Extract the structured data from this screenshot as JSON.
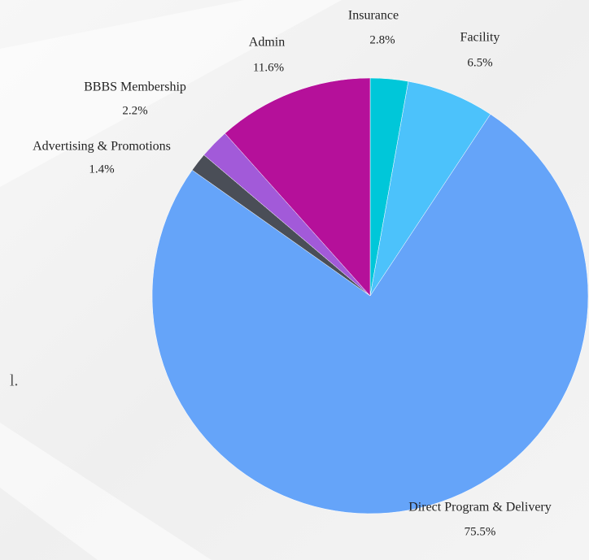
{
  "chart_data": {
    "type": "pie",
    "categories": [
      "Insurance",
      "Facility",
      "Direct Program & Delivery",
      "Advertising & Promotions",
      "BBBS Membership",
      "Admin"
    ],
    "values": [
      2.8,
      6.5,
      75.5,
      1.4,
      2.2,
      11.6
    ],
    "value_labels": [
      "2.8%",
      "6.5%",
      "75.5%",
      "1.4%",
      "2.2%",
      "11.6%"
    ],
    "colors": [
      "#00c7d9",
      "#4cc2fb",
      "#65a4f9",
      "#4a4e57",
      "#a25ad9",
      "#b5109a"
    ]
  },
  "background_text": "l."
}
